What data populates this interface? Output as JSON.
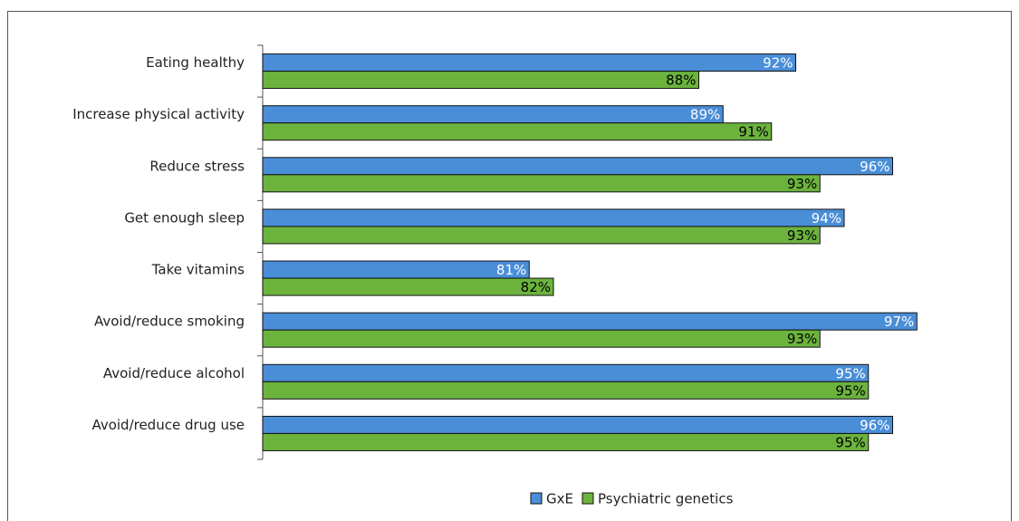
{
  "chart_data": {
    "type": "hbar",
    "categories": [
      "Eating healthy",
      "Increase physical activity",
      "Reduce stress",
      "Get enough sleep",
      "Take vitamins",
      "Avoid/reduce smoking",
      "Avoid/reduce alcohol",
      "Avoid/reduce drug use"
    ],
    "series": [
      {
        "name": "GxE",
        "color": "#4a8ed8",
        "label_color": "#ffffff",
        "values": [
          92,
          89,
          96,
          94,
          81,
          97,
          95,
          96
        ],
        "value_labels": [
          "92%",
          "89%",
          "96%",
          "94%",
          "81%",
          "97%",
          "95%",
          "96%"
        ]
      },
      {
        "name": "Psychiatric genetics",
        "color": "#6cb33e",
        "label_color": "#000000",
        "values": [
          88,
          91,
          93,
          93,
          82,
          93,
          95,
          95
        ],
        "value_labels": [
          "88%",
          "91%",
          "93%",
          "93%",
          "82%",
          "93%",
          "95%",
          "95%"
        ]
      }
    ],
    "xlim": [
      70,
      100
    ],
    "legend": "bottom"
  }
}
